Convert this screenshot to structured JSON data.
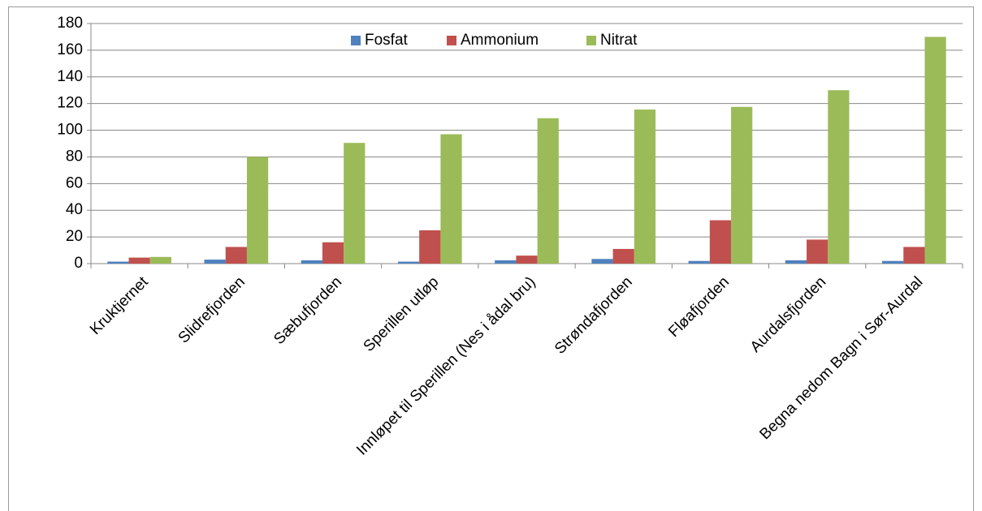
{
  "chart_data": {
    "type": "bar",
    "categories": [
      "Kruktjernet",
      "Slidrefjorden",
      "Sæbufjorden",
      "Sperillen utløp",
      "Innløpet til Sperillen (Nes i ådal bru)",
      "Strøndafjorden",
      "Fløafjorden",
      "Aurdalsfjorden",
      "Begna nedom Bagn i Sør-Aurdal"
    ],
    "series": [
      {
        "name": "Fosfat",
        "color": "#4f81bd",
        "values": [
          1.5,
          3,
          2.5,
          1.5,
          2.5,
          3.5,
          2,
          2.5,
          2
        ]
      },
      {
        "name": "Ammonium",
        "color": "#c0504d",
        "values": [
          4.5,
          12.5,
          16,
          25,
          6,
          11,
          32.5,
          18,
          12.5
        ]
      },
      {
        "name": "Nitrat",
        "color": "#9bbb59",
        "values": [
          5,
          80,
          90.5,
          97,
          109,
          115.5,
          117.5,
          130,
          170
        ]
      }
    ],
    "ylim": [
      0,
      180
    ],
    "yticks": [
      0,
      20,
      40,
      60,
      80,
      100,
      120,
      140,
      160,
      180
    ],
    "grid": true,
    "legend": "top"
  }
}
